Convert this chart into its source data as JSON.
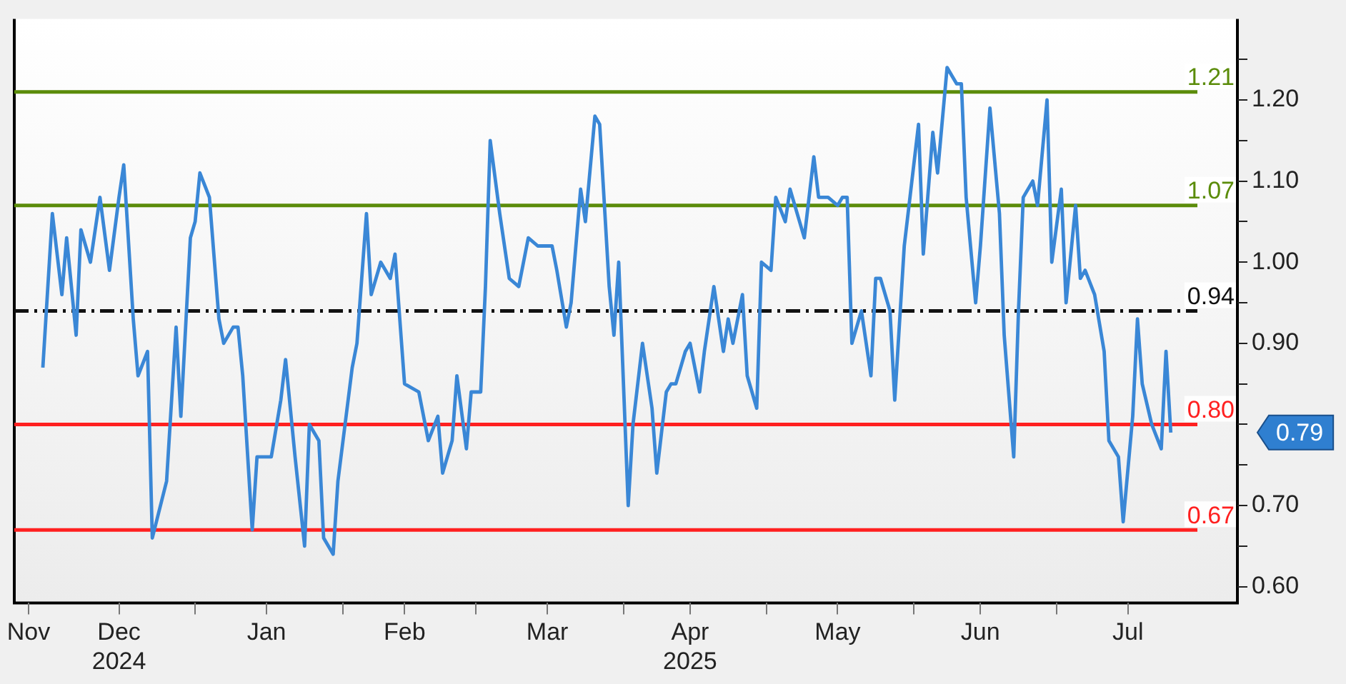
{
  "chart_data": {
    "type": "line",
    "x": [
      "2024-11-30",
      "2024-12-02",
      "2024-12-04",
      "2024-12-05",
      "2024-12-07",
      "2024-12-08",
      "2024-12-10",
      "2024-12-12",
      "2024-12-14",
      "2024-12-16",
      "2024-12-17",
      "2024-12-19",
      "2024-12-20",
      "2024-12-22",
      "2024-12-23",
      "2024-12-26",
      "2024-12-28",
      "2024-12-29",
      "2024-12-31",
      "2025-01-01",
      "2025-01-02",
      "2025-01-04",
      "2025-01-06",
      "2025-01-07",
      "2025-01-09",
      "2025-01-10",
      "2025-01-11",
      "2025-01-13",
      "2025-01-14",
      "2025-01-16",
      "2025-01-17",
      "2025-01-19",
      "2025-01-20",
      "2025-01-22",
      "2025-01-24",
      "2025-01-25",
      "2025-01-27",
      "2025-01-28",
      "2025-01-30",
      "2025-01-31",
      "2025-02-03",
      "2025-02-04",
      "2025-02-06",
      "2025-02-07",
      "2025-02-09",
      "2025-02-11",
      "2025-02-12",
      "2025-02-14",
      "2025-02-17",
      "2025-02-19",
      "2025-02-21",
      "2025-02-22",
      "2025-02-24",
      "2025-02-25",
      "2025-02-27",
      "2025-02-28",
      "2025-03-02",
      "2025-03-03",
      "2025-03-04",
      "2025-03-06",
      "2025-03-08",
      "2025-03-10",
      "2025-03-12",
      "2025-03-14",
      "2025-03-15",
      "2025-03-17",
      "2025-03-18",
      "2025-03-20",
      "2025-03-21",
      "2025-03-23",
      "2025-03-24",
      "2025-03-26",
      "2025-03-27",
      "2025-03-29",
      "2025-03-30",
      "2025-03-31",
      "2025-04-02",
      "2025-04-03",
      "2025-04-05",
      "2025-04-07",
      "2025-04-08",
      "2025-04-10",
      "2025-04-11",
      "2025-04-12",
      "2025-04-14",
      "2025-04-15",
      "2025-04-17",
      "2025-04-18",
      "2025-04-20",
      "2025-04-22",
      "2025-04-23",
      "2025-04-24",
      "2025-04-26",
      "2025-04-27",
      "2025-04-29",
      "2025-04-30",
      "2025-05-02",
      "2025-05-03",
      "2025-05-05",
      "2025-05-06",
      "2025-05-08",
      "2025-05-09",
      "2025-05-11",
      "2025-05-12",
      "2025-05-14",
      "2025-05-16",
      "2025-05-17",
      "2025-05-18",
      "2025-05-19",
      "2025-05-21",
      "2025-05-23",
      "2025-05-24",
      "2025-05-25",
      "2025-05-27",
      "2025-05-28",
      "2025-05-30",
      "2025-06-01",
      "2025-06-02",
      "2025-06-03",
      "2025-06-05",
      "2025-06-06",
      "2025-06-08",
      "2025-06-09",
      "2025-06-10",
      "2025-06-11",
      "2025-06-12",
      "2025-06-14",
      "2025-06-15",
      "2025-06-17",
      "2025-06-19",
      "2025-06-20",
      "2025-06-22",
      "2025-06-23",
      "2025-06-24",
      "2025-06-26",
      "2025-06-27",
      "2025-06-29",
      "2025-06-30",
      "2025-07-02",
      "2025-07-03",
      "2025-07-05",
      "2025-07-06",
      "2025-07-07",
      "2025-07-09",
      "2025-07-11",
      "2025-07-12",
      "2025-07-14",
      "2025-07-15",
      "2025-07-17",
      "2025-07-18",
      "2025-07-19",
      "2025-07-21",
      "2025-07-23",
      "2025-07-24",
      "2025-07-25"
    ],
    "series": [
      {
        "color": "#3a87d6",
        "values": [
          0.87,
          1.06,
          0.96,
          1.03,
          0.91,
          1.04,
          1.0,
          1.08,
          0.99,
          1.08,
          1.12,
          0.93,
          0.86,
          0.89,
          0.66,
          0.73,
          0.92,
          0.81,
          1.03,
          1.05,
          1.11,
          1.08,
          0.93,
          0.9,
          0.92,
          0.92,
          0.86,
          0.67,
          0.76,
          0.76,
          0.76,
          0.83,
          0.88,
          0.76,
          0.65,
          0.8,
          0.78,
          0.66,
          0.64,
          0.73,
          0.87,
          0.9,
          1.06,
          0.96,
          1.0,
          0.98,
          1.01,
          0.85,
          0.84,
          0.78,
          0.81,
          0.74,
          0.78,
          0.86,
          0.77,
          0.84,
          0.84,
          0.97,
          1.15,
          1.06,
          0.98,
          0.97,
          1.03,
          1.02,
          1.02,
          1.02,
          0.99,
          0.92,
          0.95,
          1.09,
          1.05,
          1.18,
          1.17,
          0.97,
          0.91,
          1.0,
          0.7,
          0.8,
          0.9,
          0.82,
          0.74,
          0.84,
          0.85,
          0.85,
          0.89,
          0.9,
          0.84,
          0.89,
          0.97,
          0.89,
          0.93,
          0.9,
          0.96,
          0.86,
          0.82,
          1.0,
          0.99,
          1.08,
          1.05,
          1.09,
          1.05,
          1.03,
          1.13,
          1.08,
          1.08,
          1.07,
          1.08,
          1.08,
          0.9,
          0.94,
          0.86,
          0.98,
          0.98,
          0.94,
          0.83,
          1.02,
          1.12,
          1.17,
          1.01,
          1.16,
          1.11,
          1.24,
          1.23,
          1.22,
          1.22,
          1.08,
          0.95,
          1.02,
          1.19,
          1.06,
          0.91,
          0.76,
          0.94,
          1.08,
          1.1,
          1.07,
          1.2,
          1.0,
          1.09,
          0.95,
          1.07,
          0.98,
          0.99,
          0.96,
          0.89,
          0.78,
          0.76,
          0.68,
          0.81,
          0.93,
          0.85,
          0.8,
          0.77,
          0.89,
          0.79
        ]
      }
    ],
    "xlim": [
      "2024-11-24",
      "2025-08-08"
    ],
    "xticks": [
      {
        "value": "2024-11-27",
        "label": "Nov"
      },
      {
        "value": "2024-12-16",
        "label": "Dec\n2024"
      },
      {
        "value": "2025-01-01",
        "label": null
      },
      {
        "value": "2025-01-16",
        "label": "Jan"
      },
      {
        "value": "2025-02-01",
        "label": null
      },
      {
        "value": "2025-02-14",
        "label": "Feb"
      },
      {
        "value": "2025-03-01",
        "label": null
      },
      {
        "value": "2025-03-16",
        "label": "Mar"
      },
      {
        "value": "2025-04-01",
        "label": null
      },
      {
        "value": "2025-04-15",
        "label": "Apr\n2025"
      },
      {
        "value": "2025-05-01",
        "label": null
      },
      {
        "value": "2025-05-16",
        "label": "May"
      },
      {
        "value": "2025-06-01",
        "label": null
      },
      {
        "value": "2025-06-15",
        "label": "Jun"
      },
      {
        "value": "2025-07-01",
        "label": null
      },
      {
        "value": "2025-07-16",
        "label": "Jul"
      }
    ],
    "ylim": [
      0.58,
      1.3
    ],
    "yticks": [
      {
        "value": 0.6,
        "label": "0.60"
      },
      {
        "value": 0.65,
        "label": null
      },
      {
        "value": 0.7,
        "label": "0.70"
      },
      {
        "value": 0.75,
        "label": null
      },
      {
        "value": 0.8,
        "label": null
      },
      {
        "value": 0.85,
        "label": null
      },
      {
        "value": 0.9,
        "label": "0.90"
      },
      {
        "value": 0.95,
        "label": null
      },
      {
        "value": 1.0,
        "label": "1.00"
      },
      {
        "value": 1.05,
        "label": null
      },
      {
        "value": 1.1,
        "label": "1.10"
      },
      {
        "value": 1.15,
        "label": null
      },
      {
        "value": 1.2,
        "label": "1.20"
      },
      {
        "value": 1.25,
        "label": null
      }
    ],
    "ref_lines": [
      {
        "axis": "y",
        "value": 1.21,
        "label": "1.21",
        "color": "#5b8c0a"
      },
      {
        "axis": "y",
        "value": 1.07,
        "label": "1.07",
        "color": "#5b8c0a"
      },
      {
        "axis": "y",
        "value": 0.94,
        "label": "0.94",
        "color": "#111111",
        "line_style": "dashed"
      },
      {
        "axis": "y",
        "value": 0.8,
        "label": "0.80",
        "color": "#ff2020"
      },
      {
        "axis": "y",
        "value": 0.67,
        "label": "0.67",
        "color": "#ff2020"
      }
    ],
    "annotations": [
      "0.79"
    ],
    "grid": false,
    "legend": false,
    "marker": "none",
    "line_style": "solid"
  }
}
